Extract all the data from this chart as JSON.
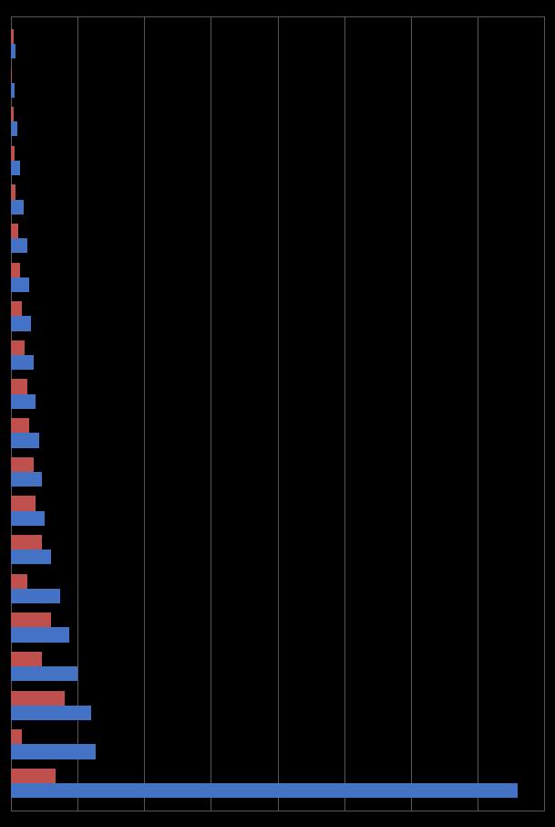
{
  "blue_values": [
    570,
    95,
    90,
    75,
    65,
    55,
    45,
    38,
    35,
    32,
    28,
    25,
    22,
    20,
    18,
    14,
    10,
    7,
    4,
    5
  ],
  "red_values": [
    50,
    12,
    60,
    35,
    45,
    18,
    35,
    28,
    25,
    20,
    18,
    15,
    12,
    10,
    8,
    5,
    4,
    3,
    1,
    3
  ],
  "blue_color": "#4472C4",
  "red_color": "#C0504D",
  "background_color": "#000000",
  "grid_color": "#595959",
  "bar_height": 0.38,
  "xlim": [
    0,
    600
  ],
  "n_categories": 20
}
